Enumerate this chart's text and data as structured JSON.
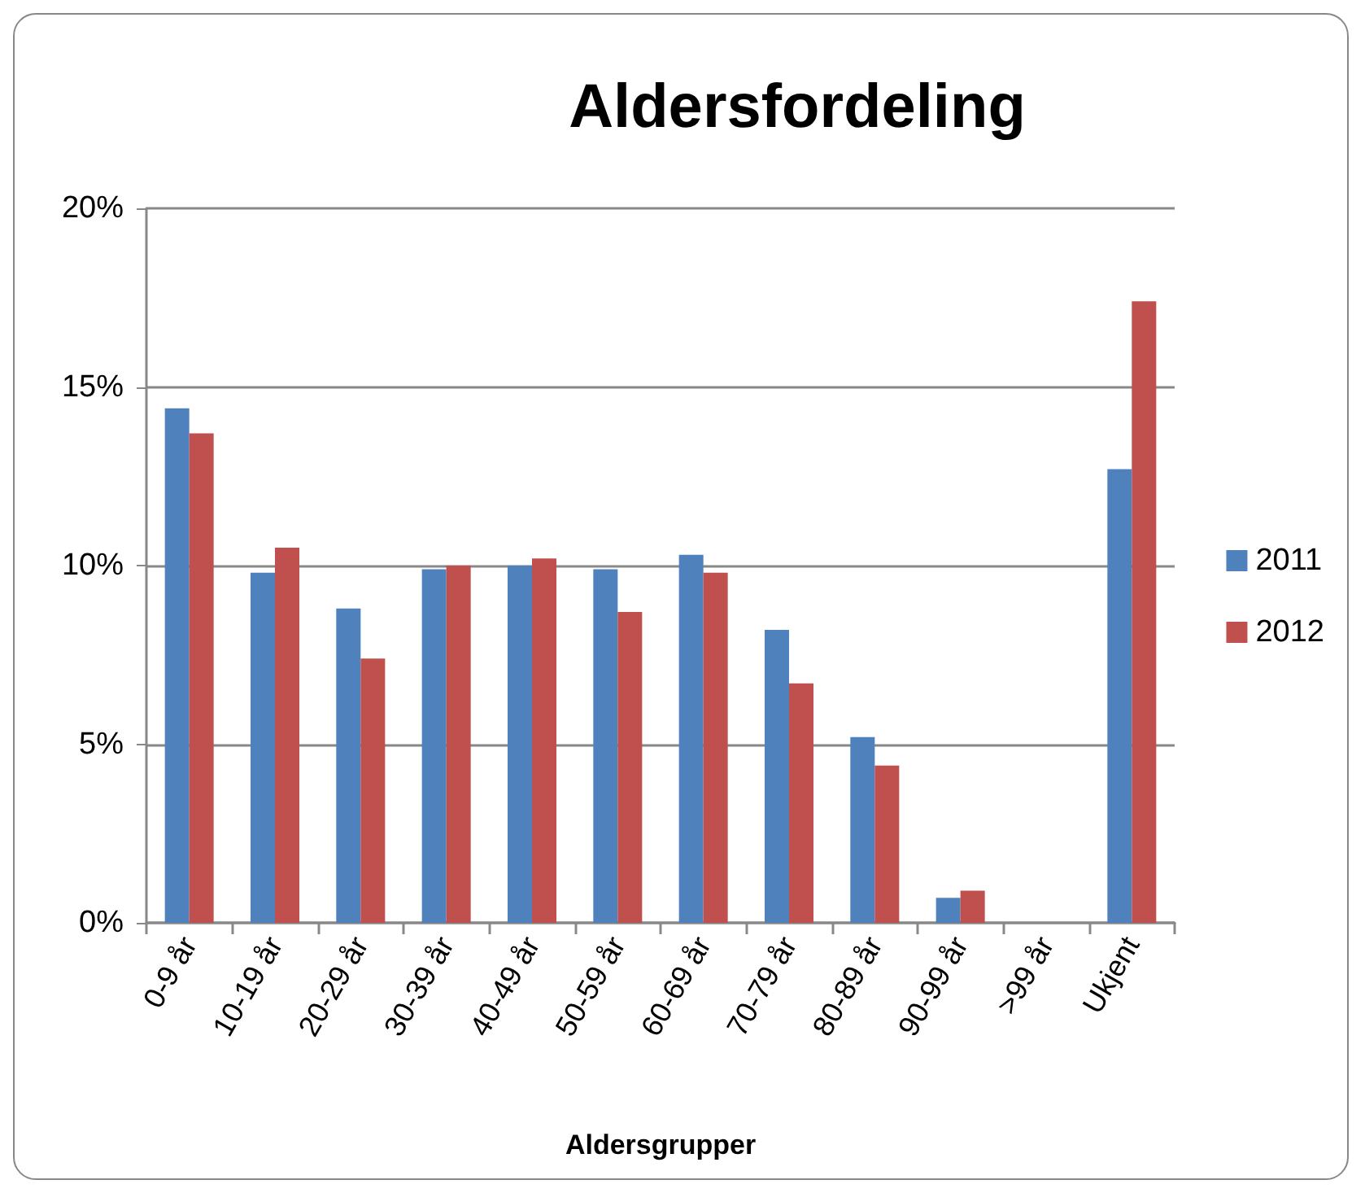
{
  "chart_data": {
    "type": "bar",
    "title": "Aldersfordeling",
    "xlabel": "Aldersgrupper",
    "categories": [
      "0-9 år",
      "10-19 år",
      "20-29 år",
      "30-39 år",
      "40-49 år",
      "50-59 år",
      "60-69 år",
      "70-79 år",
      "80-89 år",
      "90-99 år",
      ">99 år",
      "Ukjent"
    ],
    "series": [
      {
        "name": "2011",
        "color": "#4f81bd",
        "values": [
          14.4,
          9.8,
          8.8,
          9.9,
          10.0,
          9.9,
          10.3,
          8.2,
          5.2,
          0.7,
          0,
          12.7
        ]
      },
      {
        "name": "2012",
        "color": "#c0504d",
        "values": [
          13.7,
          10.5,
          7.4,
          10.0,
          10.2,
          8.7,
          9.8,
          6.7,
          4.4,
          0.9,
          0,
          17.4
        ]
      }
    ],
    "ylim": [
      0,
      20
    ],
    "yticks": [
      {
        "value": 0,
        "label": "0%"
      },
      {
        "value": 5,
        "label": "5%"
      },
      {
        "value": 10,
        "label": "10%"
      },
      {
        "value": 15,
        "label": "15%"
      },
      {
        "value": 20,
        "label": "20%"
      }
    ],
    "grid": "y",
    "legend": "right"
  }
}
